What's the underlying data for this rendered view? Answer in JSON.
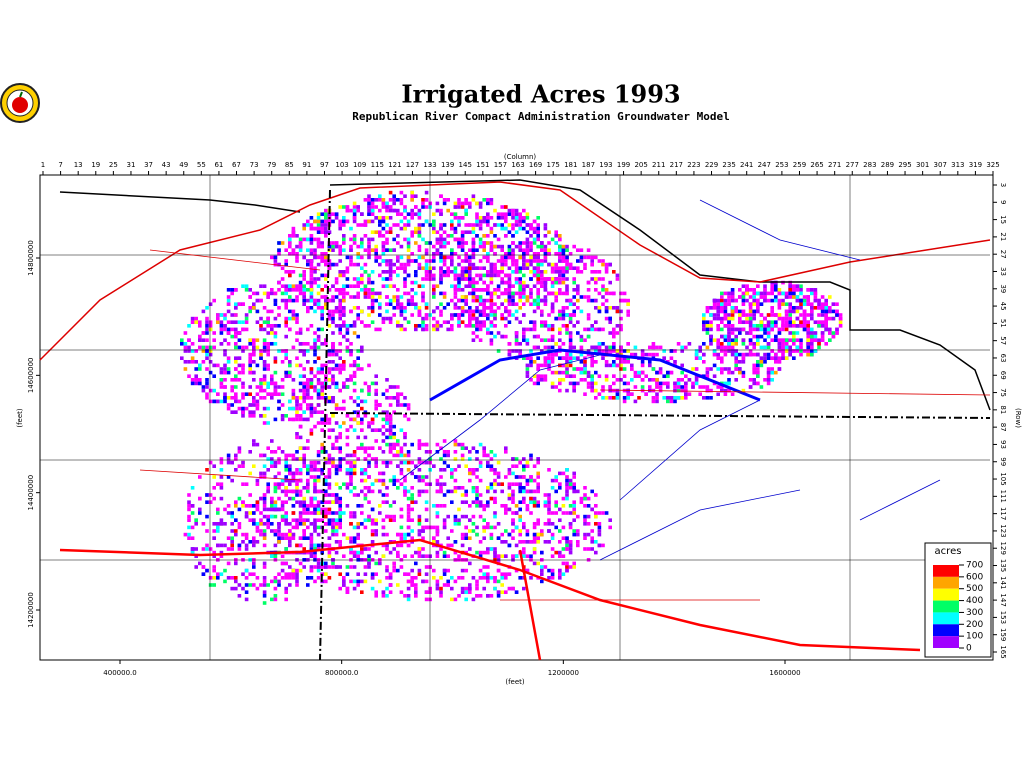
{
  "map": {
    "title": "Irrigated Acres 1993",
    "subtitle": "Republican River Compact Administration Groundwater Model",
    "column_axis": {
      "label": "(Column)",
      "ticks": [
        1,
        7,
        13,
        19,
        25,
        31,
        37,
        43,
        49,
        55,
        61,
        67,
        73,
        79,
        85,
        91,
        97,
        103,
        109,
        115,
        121,
        127,
        133,
        139,
        145,
        151,
        157,
        163,
        169,
        175,
        181,
        187,
        193,
        199,
        205,
        211,
        217,
        223,
        229,
        235,
        241,
        247,
        253,
        259,
        265,
        271,
        277,
        283,
        289,
        295,
        301,
        307,
        313,
        319,
        325
      ]
    },
    "row_axis": {
      "label": "(Row)",
      "ticks": [
        3,
        9,
        15,
        21,
        27,
        33,
        39,
        45,
        51,
        57,
        63,
        69,
        75,
        81,
        87,
        93,
        99,
        105,
        111,
        117,
        123,
        129,
        135,
        141,
        147,
        153,
        159,
        165
      ]
    },
    "easting_axis": {
      "label": "(feet)",
      "ticks": [
        {
          "value": 400000,
          "label": "400000.0"
        },
        {
          "value": 800000,
          "label": "800000.0"
        },
        1200000,
        1600000
      ]
    },
    "northing_axis": {
      "label": "(feet)",
      "ticks": [
        14800000,
        14600000,
        14400000,
        14200000
      ]
    },
    "legend": {
      "title": "acres",
      "ticks": [
        700,
        600,
        500,
        400,
        300,
        200,
        100,
        0
      ],
      "colors": [
        "#ff0000",
        "#ffa500",
        "#ffff00",
        "#00ff66",
        "#00ffff",
        "#0000ff",
        "#a000ff",
        "#ff00ff"
      ]
    }
  }
}
